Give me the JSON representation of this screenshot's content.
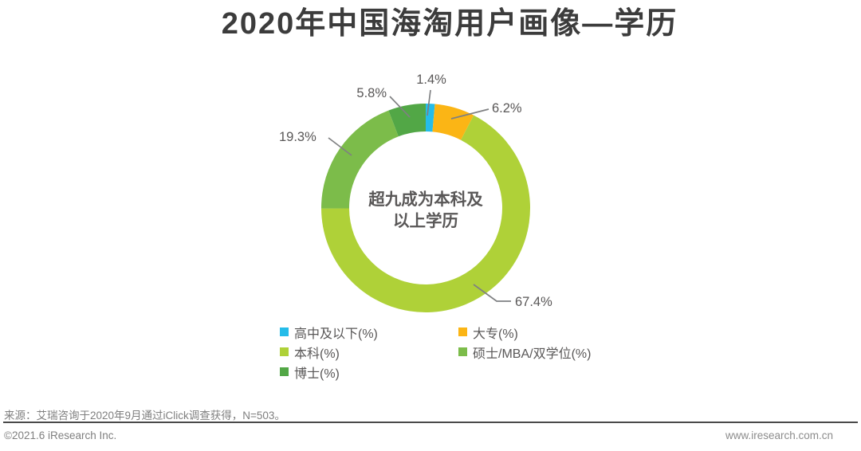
{
  "title": "2020年中国海淘用户画像—学历",
  "chart_data": {
    "type": "pie",
    "donut": true,
    "start_angle_deg": 0,
    "direction": "clockwise",
    "center_label_line1": "超九成为本科及",
    "center_label_line2": "以上学历",
    "legend_position": "bottom",
    "segments": [
      {
        "label": "高中及以下(%)",
        "value": 1.4,
        "value_label": "1.4%",
        "color": "#25BCE9"
      },
      {
        "label": "大专(%)",
        "value": 6.2,
        "value_label": "6.2%",
        "color": "#FBB515"
      },
      {
        "label": "本科(%)",
        "value": 67.4,
        "value_label": "67.4%",
        "color": "#AFD138"
      },
      {
        "label": "硕士/MBA/双学位(%)",
        "value": 19.3,
        "value_label": "19.3%",
        "color": "#7CBC4A"
      },
      {
        "label": "博士(%)",
        "value": 5.8,
        "value_label": "5.8%",
        "color": "#52A746"
      }
    ]
  },
  "footer": {
    "source": "来源：艾瑞咨询于2020年9月通过iClick调查获得，N=503。",
    "copyright": "©2021.6 iResearch Inc.",
    "website": "www.iresearch.com.cn"
  }
}
